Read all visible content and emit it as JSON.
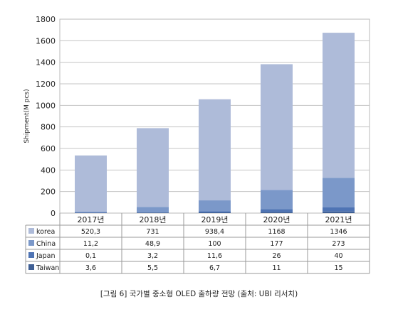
{
  "chart_data": {
    "type": "bar",
    "stacked": true,
    "categories": [
      "2017년",
      "2018년",
      "2019년",
      "2020년",
      "2021년"
    ],
    "series": [
      {
        "name": "Taiwan",
        "color": "#3f5f94",
        "values": [
          3.6,
          5.5,
          6.7,
          11,
          15
        ],
        "labels": [
          "3,6",
          "5,5",
          "6,7",
          "11",
          "15"
        ]
      },
      {
        "name": "Japan",
        "color": "#4f74b4",
        "values": [
          0.1,
          3.2,
          11.6,
          26,
          40
        ],
        "labels": [
          "0,1",
          "3,2",
          "11,6",
          "26",
          "40"
        ]
      },
      {
        "name": "China",
        "color": "#7b98c9",
        "values": [
          11.2,
          48.9,
          100,
          177,
          273
        ],
        "labels": [
          "11,2",
          "48,9",
          "100",
          "177",
          "273"
        ]
      },
      {
        "name": "korea",
        "color": "#aebbd9",
        "values": [
          520.3,
          731,
          938.4,
          1168,
          1346
        ],
        "labels": [
          "520,3",
          "731",
          "938,4",
          "1168",
          "1346"
        ]
      }
    ],
    "table_order": [
      "korea",
      "China",
      "Japan",
      "Taiwan"
    ],
    "ylabel": "Shipment(M pcs)",
    "ylim": [
      0,
      1800
    ],
    "yticks": [
      0,
      200,
      400,
      600,
      800,
      1000,
      1200,
      1400,
      1600,
      1800
    ],
    "grid": true,
    "legend": "data-table"
  },
  "caption": "[그림 6] 국가별 중소형 OLED 출하량 전망 (출처: UBI 리서치)"
}
